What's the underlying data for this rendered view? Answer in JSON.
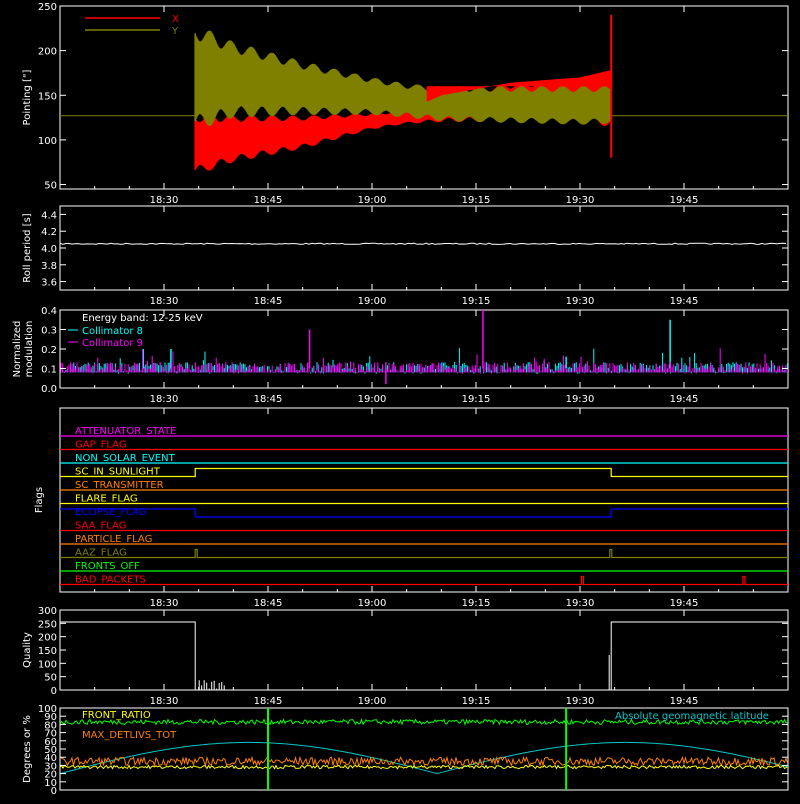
{
  "chart_data": [
    {
      "type": "line",
      "panel": "pointing",
      "ylabel": "Pointing [\"]",
      "ylim": [
        45,
        250
      ],
      "yticks": [
        "50",
        "100",
        "150",
        "200",
        "250"
      ],
      "xticks": [
        "18:30",
        "18:45",
        "19:00",
        "19:15",
        "19:30",
        "19:45"
      ],
      "xtick_minutes": [
        30,
        45,
        60,
        75,
        90,
        105
      ],
      "xlim_minutes": [
        15,
        120
      ],
      "legend": [
        {
          "name": "X",
          "color": "#ff0000"
        },
        {
          "name": "Y",
          "color": "#808000"
        }
      ],
      "baseline": 127,
      "active_window_minutes": [
        34.5,
        94.5
      ],
      "series": [
        {
          "name": "X",
          "color": "#ff0000",
          "envelope_time_minutes": [
            34.5,
            40,
            50,
            60,
            65,
            70,
            80,
            90,
            94.5
          ],
          "lower": [
            60,
            75,
            90,
            112,
            118,
            120,
            120,
            118,
            115
          ],
          "upper": [
            130,
            128,
            127,
            130,
            133,
            150,
            164,
            170,
            178
          ]
        },
        {
          "name": "Y",
          "color": "#808000",
          "envelope_time_minutes": [
            34.5,
            40,
            50,
            60,
            65,
            70,
            80,
            90,
            94.5
          ],
          "lower": [
            110,
            125,
            128,
            128,
            125,
            121,
            119,
            117,
            118
          ],
          "upper": [
            230,
            210,
            188,
            170,
            163,
            160,
            160,
            160,
            160
          ]
        }
      ]
    },
    {
      "type": "line",
      "panel": "roll_period",
      "ylabel": "Roll period [s]",
      "ylim": [
        3.5,
        4.5
      ],
      "yticks": [
        "3.6",
        "3.8",
        "4.0",
        "4.2",
        "4.4"
      ],
      "xticks": [
        "18:30",
        "18:45",
        "19:00",
        "19:15",
        "19:30",
        "19:45"
      ],
      "series": [
        {
          "name": "",
          "color": "#ffffff",
          "value": 4.05
        }
      ]
    },
    {
      "type": "line",
      "panel": "modulation",
      "ylabel": "Normalized modulation",
      "ylim": [
        0,
        0.4
      ],
      "yticks": [
        "0.0",
        "0.1",
        "0.2",
        "0.3",
        "0.4"
      ],
      "xticks": [
        "18:30",
        "18:45",
        "19:00",
        "19:15",
        "19:30",
        "19:45"
      ],
      "annotation": "Energy band: 12-25 keV",
      "series": [
        {
          "name": "Collimator 8",
          "color": "#00ffff",
          "baseline": 0.1,
          "spikes_minutes": [
            103,
            27,
            31,
            88
          ],
          "spike_values": [
            0.35,
            0.2,
            0.2,
            0.16
          ]
        },
        {
          "name": "Collimator 9",
          "color": "#ff00ff",
          "baseline": 0.1,
          "spikes_minutes": [
            76,
            51,
            62
          ],
          "spike_values": [
            0.4,
            0.3,
            0.02
          ]
        }
      ]
    },
    {
      "type": "line",
      "panel": "flags",
      "ylabel": "Flags",
      "xticks": [
        "18:30",
        "18:45",
        "19:00",
        "19:15",
        "19:30",
        "19:45"
      ],
      "flags": [
        {
          "name": "ATTENUATOR_STATE",
          "color": "#ff00ff"
        },
        {
          "name": "GAP_FLAG",
          "color": "#ff0000"
        },
        {
          "name": "NON_SOLAR_EVENT",
          "color": "#00ffff"
        },
        {
          "name": "SC_IN_SUNLIGHT",
          "color": "#ffff00",
          "high_window_minutes": [
            34.5,
            94.5
          ]
        },
        {
          "name": "SC_TRANSMITTER",
          "color": "#ff8000"
        },
        {
          "name": "FLARE_FLAG",
          "color": "#ffff00"
        },
        {
          "name": "ECLIPSE_FLAG",
          "color": "#0000ff",
          "high_outside_window_minutes": [
            34.5,
            94.5
          ]
        },
        {
          "name": "SAA_FLAG",
          "color": "#ff0000"
        },
        {
          "name": "PARTICLE_FLAG",
          "color": "#ff8000"
        },
        {
          "name": "AAZ_FLAG",
          "color": "#808000",
          "pulses_minutes": [
            34.5,
            94.3
          ]
        },
        {
          "name": "FRONTS_OFF",
          "color": "#00ff00"
        },
        {
          "name": "BAD_PACKETS",
          "color": "#ff0000",
          "pulses_minutes": [
            90.2,
            113.5
          ]
        }
      ]
    },
    {
      "type": "line",
      "panel": "quality",
      "ylabel": "Quality",
      "ylim": [
        0,
        300
      ],
      "yticks": [
        "0",
        "50",
        "100",
        "150",
        "200",
        "250",
        "300"
      ],
      "xticks": [
        "18:30",
        "18:45",
        "19:00",
        "19:15",
        "19:30",
        "19:45"
      ],
      "series": [
        {
          "name": "",
          "color": "#ffffff",
          "high_value": 255,
          "low_window_minutes": [
            34.5,
            94.5
          ]
        }
      ]
    },
    {
      "type": "line",
      "panel": "geomagnetic",
      "ylabel": "Degrees or %",
      "ylim": [
        0,
        100
      ],
      "yticks": [
        "0",
        "10",
        "20",
        "30",
        "40",
        "50",
        "60",
        "70",
        "80",
        "90",
        "100"
      ],
      "xticks": [
        "18:30",
        "18:45",
        "19:00",
        "19:15",
        "19:30",
        "19:45"
      ],
      "legend_labels": [
        "FRONT_RATIO",
        "?",
        "MAX_DETLIVS_TOT"
      ],
      "right_label": "Absolute geomagnetic latitude",
      "series": [
        {
          "name": "FRONT_RATIO",
          "color": "#00ff00",
          "level": 83
        },
        {
          "name": "MAX_DETLIVS_TOT",
          "color": "#ff8000",
          "level": 35
        },
        {
          "name": "",
          "color": "#ffff00",
          "level": 28
        },
        {
          "name": "Absolute geomagnetic latitude",
          "color": "#00c8c8",
          "amplitude": 38,
          "offset": 20
        }
      ]
    }
  ]
}
